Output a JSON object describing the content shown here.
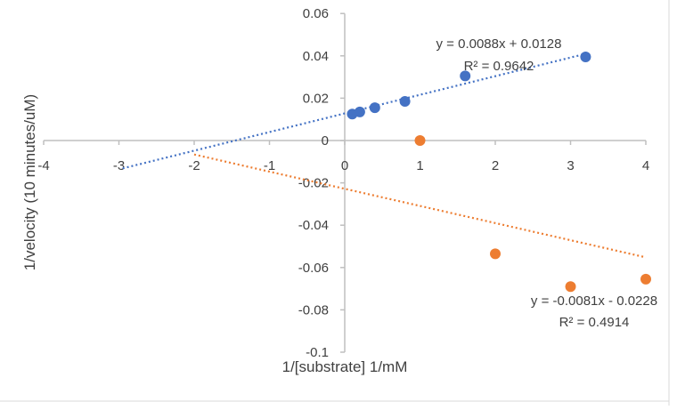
{
  "chart_data": {
    "type": "scatter",
    "title": "",
    "xlabel": "1/[substrate] 1/mM",
    "ylabel": "1/velocity (10 minutes/uM)",
    "xlim": [
      -4,
      4
    ],
    "ylim": [
      -0.1,
      0.06
    ],
    "x_ticks": [
      -4,
      -3,
      -2,
      -1,
      0,
      1,
      2,
      3,
      4
    ],
    "y_ticks": [
      -0.1,
      -0.08,
      -0.06,
      -0.04,
      -0.02,
      0,
      0.02,
      0.04,
      0.06
    ],
    "x_tick_labels": [
      "-4",
      "-3",
      "-2",
      "-1",
      "0",
      "1",
      "2",
      "3",
      "4"
    ],
    "y_tick_labels": [
      "-0.1",
      "-0.08",
      "-0.06",
      "-0.04",
      "-0.02",
      "0",
      "0.02",
      "0.04",
      "0.06"
    ],
    "grid": false,
    "series": [
      {
        "color": "#4472c4",
        "points": [
          [
            0.1,
            0.0125
          ],
          [
            0.2,
            0.0135
          ],
          [
            0.4,
            0.0155
          ],
          [
            0.8,
            0.0185
          ],
          [
            1.6,
            0.0305
          ],
          [
            3.2,
            0.0395
          ]
        ],
        "trendline": {
          "slope": 0.0088,
          "intercept": 0.0128,
          "x_range": [
            -2.95,
            3.2
          ]
        },
        "equation": "y = 0.0088x + 0.0128",
        "r_squared": "R² = 0.9642"
      },
      {
        "color": "#ed7d31",
        "points": [
          [
            1.0,
            0.0
          ],
          [
            2.0,
            -0.0535
          ],
          [
            3.0,
            -0.069
          ],
          [
            4.0,
            -0.0655
          ]
        ],
        "trendline": {
          "slope": -0.0081,
          "intercept": -0.0228,
          "x_range": [
            -2.0,
            4.0
          ]
        },
        "equation": "y = -0.0081x - 0.0228",
        "r_squared": "R² = 0.4914"
      }
    ]
  }
}
